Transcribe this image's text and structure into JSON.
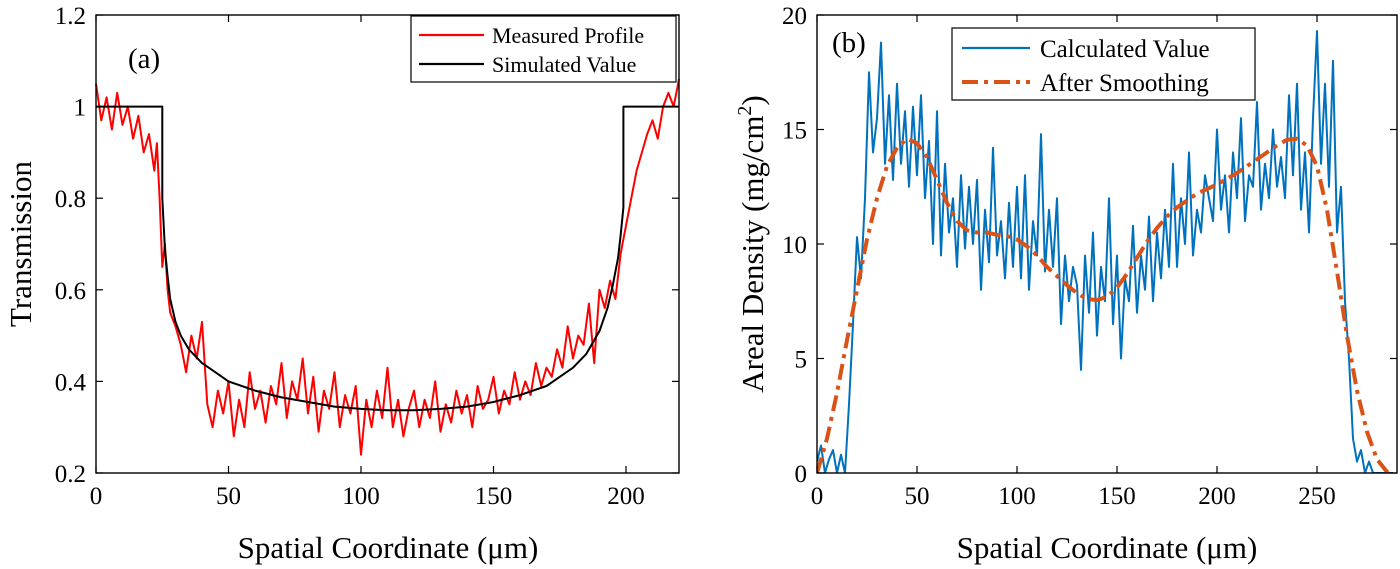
{
  "chart_data": [
    {
      "id": "a",
      "type": "line",
      "panel_label": "(a)",
      "xlabel": "Spatial Coordinate (μm)",
      "ylabel": "Transmission",
      "xlim": [
        0,
        220
      ],
      "ylim": [
        0.2,
        1.2
      ],
      "xticks": [
        "0",
        "50",
        "100",
        "150",
        "200"
      ],
      "yticks": [
        "0.2",
        "0.4",
        "0.6",
        "0.8",
        "1",
        "1.2"
      ],
      "legend_position": "top-right",
      "series": [
        {
          "name": "Measured Profile",
          "color": "#ff0000",
          "style": "solid",
          "x": [
            0,
            2,
            4,
            6,
            8,
            10,
            12,
            14,
            16,
            18,
            20,
            22,
            23,
            24,
            25,
            26,
            27,
            28,
            30,
            32,
            34,
            36,
            38,
            40,
            42,
            44,
            46,
            48,
            50,
            52,
            54,
            56,
            58,
            60,
            62,
            64,
            66,
            68,
            70,
            72,
            74,
            76,
            78,
            80,
            82,
            84,
            86,
            88,
            90,
            92,
            94,
            96,
            98,
            100,
            102,
            104,
            106,
            108,
            110,
            112,
            114,
            116,
            118,
            120,
            122,
            124,
            126,
            128,
            130,
            132,
            134,
            136,
            138,
            140,
            142,
            144,
            146,
            148,
            150,
            152,
            154,
            156,
            158,
            160,
            162,
            164,
            166,
            168,
            170,
            172,
            174,
            176,
            178,
            180,
            182,
            184,
            186,
            188,
            190,
            192,
            194,
            196,
            198,
            200,
            202,
            204,
            206,
            208,
            210,
            212,
            214,
            216,
            218,
            220
          ],
          "y": [
            1.05,
            0.97,
            1.02,
            0.95,
            1.03,
            0.96,
            1.0,
            0.93,
            0.98,
            0.9,
            0.94,
            0.86,
            0.92,
            0.8,
            0.65,
            0.7,
            0.6,
            0.55,
            0.52,
            0.48,
            0.42,
            0.5,
            0.45,
            0.53,
            0.35,
            0.3,
            0.38,
            0.33,
            0.4,
            0.28,
            0.36,
            0.3,
            0.42,
            0.34,
            0.38,
            0.31,
            0.39,
            0.35,
            0.44,
            0.32,
            0.4,
            0.36,
            0.45,
            0.33,
            0.41,
            0.29,
            0.38,
            0.34,
            0.42,
            0.3,
            0.37,
            0.33,
            0.39,
            0.24,
            0.36,
            0.3,
            0.38,
            0.32,
            0.43,
            0.3,
            0.36,
            0.28,
            0.34,
            0.38,
            0.3,
            0.36,
            0.32,
            0.4,
            0.29,
            0.35,
            0.31,
            0.38,
            0.33,
            0.37,
            0.3,
            0.39,
            0.34,
            0.36,
            0.41,
            0.33,
            0.38,
            0.35,
            0.42,
            0.36,
            0.4,
            0.37,
            0.44,
            0.39,
            0.43,
            0.41,
            0.47,
            0.43,
            0.52,
            0.45,
            0.5,
            0.48,
            0.57,
            0.44,
            0.6,
            0.56,
            0.62,
            0.58,
            0.68,
            0.74,
            0.8,
            0.86,
            0.9,
            0.94,
            0.97,
            0.93,
            1.0,
            1.03,
            1.0,
            1.06
          ]
        },
        {
          "name": "Simulated Value",
          "color": "#000000",
          "style": "solid",
          "x": [
            0,
            25,
            25,
            26,
            27,
            28,
            30,
            32,
            35,
            40,
            45,
            50,
            60,
            70,
            80,
            90,
            100,
            110,
            120,
            130,
            140,
            150,
            160,
            170,
            180,
            185,
            190,
            193,
            195,
            197,
            198,
            199,
            199,
            220
          ],
          "y": [
            1.0,
            1.0,
            0.8,
            0.69,
            0.63,
            0.58,
            0.53,
            0.5,
            0.47,
            0.44,
            0.42,
            0.4,
            0.38,
            0.365,
            0.355,
            0.345,
            0.34,
            0.337,
            0.337,
            0.34,
            0.345,
            0.355,
            0.37,
            0.39,
            0.43,
            0.46,
            0.51,
            0.56,
            0.61,
            0.67,
            0.72,
            0.78,
            1.0,
            1.0
          ]
        }
      ]
    },
    {
      "id": "b",
      "type": "line",
      "panel_label": "(b)",
      "xlabel": "Spatial Coordinate (μm)",
      "ylabel_main": "Areal Density (mg/cm",
      "ylabel_sup": "2",
      "ylabel_end": ")",
      "xlim": [
        0,
        290
      ],
      "ylim": [
        0,
        20
      ],
      "xticks": [
        "0",
        "50",
        "100",
        "150",
        "200",
        "250"
      ],
      "yticks": [
        "0",
        "5",
        "10",
        "15",
        "20"
      ],
      "legend_position": "top-center",
      "series": [
        {
          "name": "Calculated Value",
          "color": "#0072bd",
          "style": "solid",
          "x": [
            0,
            2,
            4,
            6,
            8,
            10,
            12,
            14,
            16,
            18,
            20,
            22,
            24,
            26,
            28,
            30,
            32,
            34,
            36,
            38,
            40,
            42,
            44,
            46,
            48,
            50,
            52,
            54,
            56,
            58,
            60,
            62,
            64,
            66,
            68,
            70,
            72,
            74,
            76,
            78,
            80,
            82,
            84,
            86,
            88,
            90,
            92,
            94,
            96,
            98,
            100,
            102,
            104,
            106,
            108,
            110,
            112,
            114,
            116,
            118,
            120,
            122,
            124,
            126,
            128,
            130,
            132,
            134,
            136,
            138,
            140,
            142,
            144,
            146,
            148,
            150,
            152,
            154,
            156,
            158,
            160,
            162,
            164,
            166,
            168,
            170,
            172,
            174,
            176,
            178,
            180,
            182,
            184,
            186,
            188,
            190,
            192,
            194,
            196,
            198,
            200,
            202,
            204,
            206,
            208,
            210,
            212,
            214,
            216,
            218,
            220,
            222,
            224,
            226,
            228,
            230,
            232,
            234,
            236,
            238,
            240,
            242,
            244,
            246,
            248,
            250,
            252,
            254,
            256,
            258,
            260,
            262,
            264,
            266,
            268,
            270,
            272,
            274,
            276,
            278,
            280,
            282,
            284,
            286,
            288
          ],
          "y": [
            0.5,
            1.2,
            0,
            0.6,
            1.0,
            0,
            0.8,
            0,
            3.0,
            6.5,
            10.3,
            8.5,
            12.0,
            17.5,
            14.0,
            15.5,
            18.8,
            13.5,
            16.5,
            12.8,
            17.0,
            13.5,
            15.8,
            12.5,
            16.0,
            13.0,
            16.5,
            12.0,
            14.5,
            10.0,
            15.8,
            9.5,
            13.5,
            10.5,
            12.0,
            9.0,
            13.0,
            9.8,
            12.5,
            10.0,
            12.8,
            8.0,
            11.5,
            9.2,
            14.2,
            9.5,
            11.0,
            8.5,
            11.8,
            9.0,
            12.5,
            8.5,
            13.0,
            8.0,
            11.0,
            9.5,
            14.8,
            8.8,
            11.5,
            9.0,
            12.0,
            6.5,
            9.5,
            7.5,
            9.0,
            8.2,
            4.5,
            9.5,
            7.0,
            10.5,
            6.0,
            9.0,
            7.5,
            12.0,
            6.5,
            9.5,
            5.0,
            8.5,
            7.5,
            10.8,
            7.0,
            9.5,
            8.0,
            11.2,
            7.5,
            10.5,
            8.5,
            11.5,
            9.0,
            13.5,
            9.0,
            12.0,
            10.0,
            14.0,
            9.5,
            11.5,
            10.5,
            13.0,
            12.0,
            11.0,
            15.0,
            11.5,
            13.0,
            10.5,
            14.0,
            12.0,
            15.5,
            11.0,
            13.0,
            12.5,
            16.2,
            11.5,
            13.5,
            12.0,
            15.0,
            12.5,
            13.8,
            12.0,
            16.5,
            13.0,
            17.0,
            11.5,
            14.0,
            10.5,
            15.5,
            19.3,
            13.5,
            17.0,
            12.5,
            18.0,
            10.5,
            12.5,
            7.5,
            5.0,
            1.5,
            0.5,
            1.0,
            0,
            0.5,
            0,
            0,
            0,
            0,
            0,
            0
          ],
          "clip_to_axes": true
        },
        {
          "name": "After Smoothing",
          "color": "#d95319",
          "style": "dash-dot",
          "x": [
            0,
            5,
            10,
            15,
            20,
            25,
            30,
            35,
            40,
            45,
            50,
            55,
            60,
            65,
            70,
            75,
            80,
            85,
            90,
            95,
            100,
            105,
            110,
            115,
            120,
            125,
            130,
            135,
            140,
            145,
            150,
            155,
            160,
            165,
            170,
            175,
            180,
            185,
            190,
            195,
            200,
            205,
            210,
            215,
            220,
            225,
            230,
            235,
            240,
            245,
            250,
            255,
            260,
            265,
            270,
            275,
            280,
            285,
            288
          ],
          "y": [
            0.0,
            1.5,
            3.5,
            5.8,
            8.0,
            10.2,
            12.0,
            13.4,
            14.2,
            14.6,
            14.4,
            13.8,
            12.8,
            11.8,
            11.0,
            10.6,
            10.5,
            10.5,
            10.4,
            10.35,
            10.2,
            9.9,
            9.5,
            9.0,
            8.6,
            8.2,
            7.85,
            7.6,
            7.55,
            7.7,
            8.1,
            8.7,
            9.4,
            10.1,
            10.7,
            11.2,
            11.6,
            11.9,
            12.2,
            12.4,
            12.6,
            12.85,
            13.1,
            13.4,
            13.7,
            14.0,
            14.3,
            14.55,
            14.6,
            14.3,
            13.4,
            11.5,
            8.8,
            6.0,
            3.6,
            1.8,
            0.6,
            0.05,
            0.0
          ]
        }
      ]
    }
  ]
}
